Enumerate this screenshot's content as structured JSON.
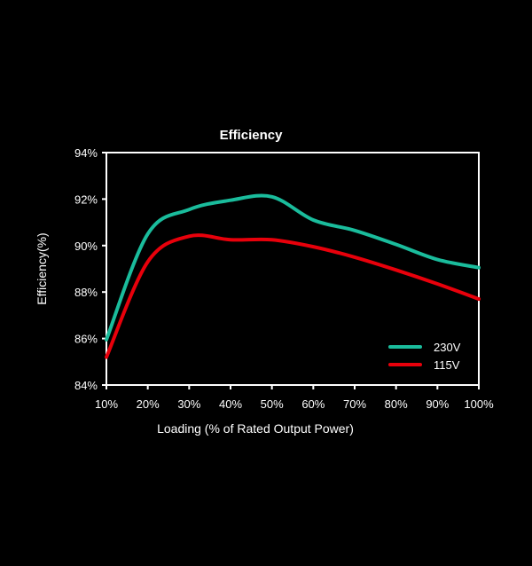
{
  "chart_data": {
    "type": "line",
    "title": "Efficiency",
    "xlabel": "Loading (% of Rated Output Power)",
    "ylabel": "Efficiency(%)",
    "x": [
      10,
      20,
      30,
      40,
      50,
      60,
      70,
      80,
      90,
      100
    ],
    "x_tick_labels": [
      "10%",
      "20%",
      "30%",
      "40%",
      "50%",
      "60%",
      "70%",
      "80%",
      "90%",
      "100%"
    ],
    "y_ticks": [
      84,
      86,
      88,
      90,
      92,
      94
    ],
    "y_tick_labels": [
      "84%",
      "86%",
      "88%",
      "90%",
      "92%",
      "94%"
    ],
    "xlim": [
      10,
      100
    ],
    "ylim": [
      84,
      94
    ],
    "grid": false,
    "legend_position": "bottom-right",
    "series": [
      {
        "name": "230V",
        "color": "#1ABC9C",
        "values": [
          85.95,
          90.5,
          91.55,
          91.95,
          92.1,
          91.1,
          90.65,
          90.05,
          89.4,
          89.05
        ]
      },
      {
        "name": "115V",
        "color": "#E8000B",
        "values": [
          85.2,
          89.3,
          90.4,
          90.25,
          90.25,
          89.95,
          89.5,
          88.95,
          88.35,
          87.7
        ]
      }
    ]
  }
}
